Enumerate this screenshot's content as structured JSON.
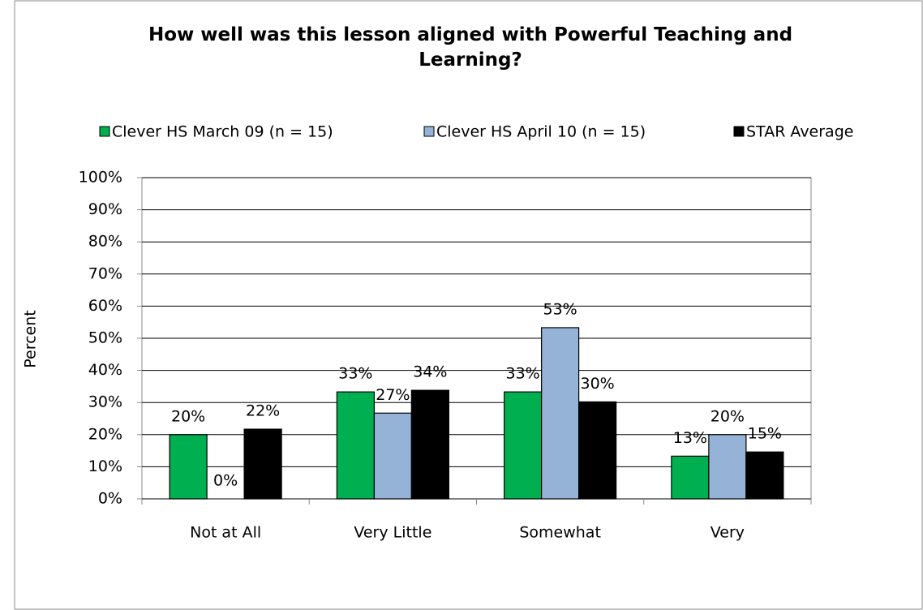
{
  "chart_data": {
    "type": "bar",
    "title": "How well was this lesson aligned with Powerful Teaching and Learning?",
    "y_label": "Percent",
    "categories": [
      "Not at All",
      "Very Little",
      "Somewhat",
      "Very"
    ],
    "series": [
      {
        "name": "Clever HS March 09 (n = 15)",
        "color": "#00b050",
        "values": [
          20,
          33.3,
          33.3,
          13.3
        ],
        "value_labels": [
          "20%",
          "33%",
          "33%",
          "13%"
        ]
      },
      {
        "name": "Clever HS April 10 (n = 15)",
        "color": "#95b3d7",
        "values": [
          0,
          26.7,
          53.3,
          20
        ],
        "value_labels": [
          "0%",
          "27%",
          "53%",
          "20%"
        ]
      },
      {
        "name": "STAR Average",
        "color": "#000000",
        "values": [
          21.7,
          33.8,
          30.2,
          14.6
        ],
        "value_labels": [
          "22%",
          "34%",
          "30%",
          "15%"
        ]
      }
    ],
    "ylim": [
      0,
      100
    ],
    "yticks": [
      {
        "value": 0,
        "label": "0%"
      },
      {
        "value": 10,
        "label": "10%"
      },
      {
        "value": 20,
        "label": "20%"
      },
      {
        "value": 30,
        "label": "30%"
      },
      {
        "value": 40,
        "label": "40%"
      },
      {
        "value": 50,
        "label": "50%"
      },
      {
        "value": 60,
        "label": "60%"
      },
      {
        "value": 70,
        "label": "70%"
      },
      {
        "value": 80,
        "label": "80%"
      },
      {
        "value": 90,
        "label": "90%"
      },
      {
        "value": 100,
        "label": "100%"
      }
    ],
    "grid": true,
    "legend": "top"
  }
}
